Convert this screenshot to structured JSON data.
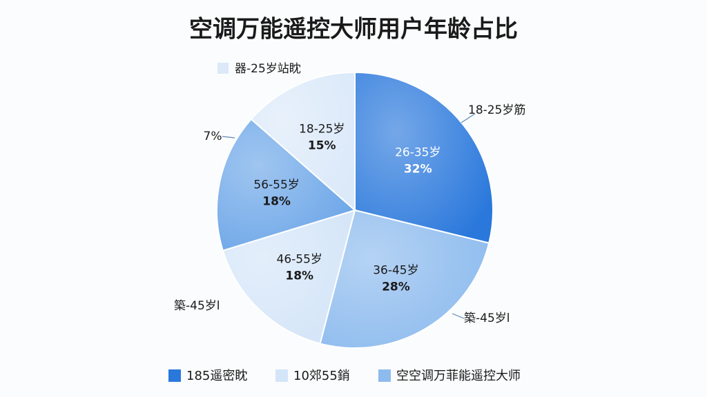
{
  "chart_data": {
    "type": "pie",
    "title": "空调万能遥控大师用户年龄占比",
    "categories": [
      "26-35岁",
      "36-45岁",
      "46-55岁",
      "56-55岁",
      "18-25岁"
    ],
    "values": [
      32,
      28,
      18,
      18,
      15
    ],
    "value_labels": [
      "32%",
      "28%",
      "18%",
      "18%",
      "15%"
    ],
    "colors": [
      "#2a78dc",
      "#8dbbee",
      "#d4e5f8",
      "#6ca6e8",
      "#dbe9f9"
    ],
    "annotations": [
      "器-25岁站眈",
      "18-25岁筋",
      "7%",
      "築-45岁l",
      "築-45岁l"
    ],
    "legend": [
      {
        "label": "185遥密眈",
        "color": "#2a78dc"
      },
      {
        "label": "10郊55銷",
        "color": "#d4e5f8"
      },
      {
        "label": "空空调万菲能遥控大师",
        "color": "#8dbbee"
      }
    ]
  }
}
